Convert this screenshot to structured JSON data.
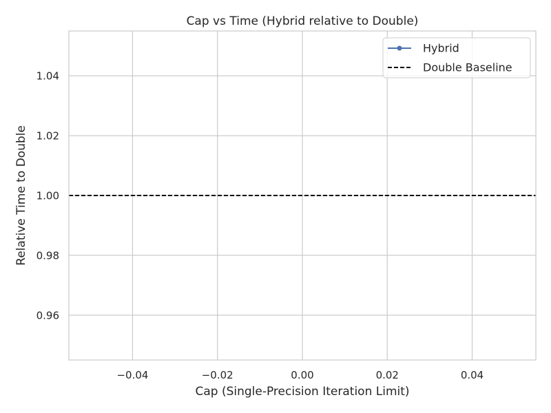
{
  "chart_data": {
    "type": "line",
    "title": "Cap vs Time (Hybrid relative to Double)",
    "xlabel": "Cap (Single-Precision Iteration Limit)",
    "ylabel": "Relative Time to Double",
    "xlim": [
      -0.055,
      0.055
    ],
    "ylim": [
      0.945,
      1.055
    ],
    "x_ticks": [
      -0.04,
      -0.02,
      0.0,
      0.02,
      0.04
    ],
    "x_tick_labels": [
      "−0.04",
      "−0.02",
      "0.00",
      "0.02",
      "0.04"
    ],
    "y_ticks": [
      0.96,
      0.98,
      1.0,
      1.02,
      1.04
    ],
    "y_tick_labels": [
      "0.96",
      "0.98",
      "1.00",
      "1.02",
      "1.04"
    ],
    "grid": true,
    "series": [
      {
        "name": "Hybrid",
        "x": [],
        "y": [],
        "color": "#4c72b0",
        "style": "solid",
        "marker": "circle"
      }
    ],
    "reference_lines": [
      {
        "name": "Double Baseline",
        "y": 1.0,
        "color": "#000000",
        "style": "dashed"
      }
    ],
    "legend": {
      "position": "top-right",
      "entries": [
        "Hybrid",
        "Double Baseline"
      ]
    }
  }
}
